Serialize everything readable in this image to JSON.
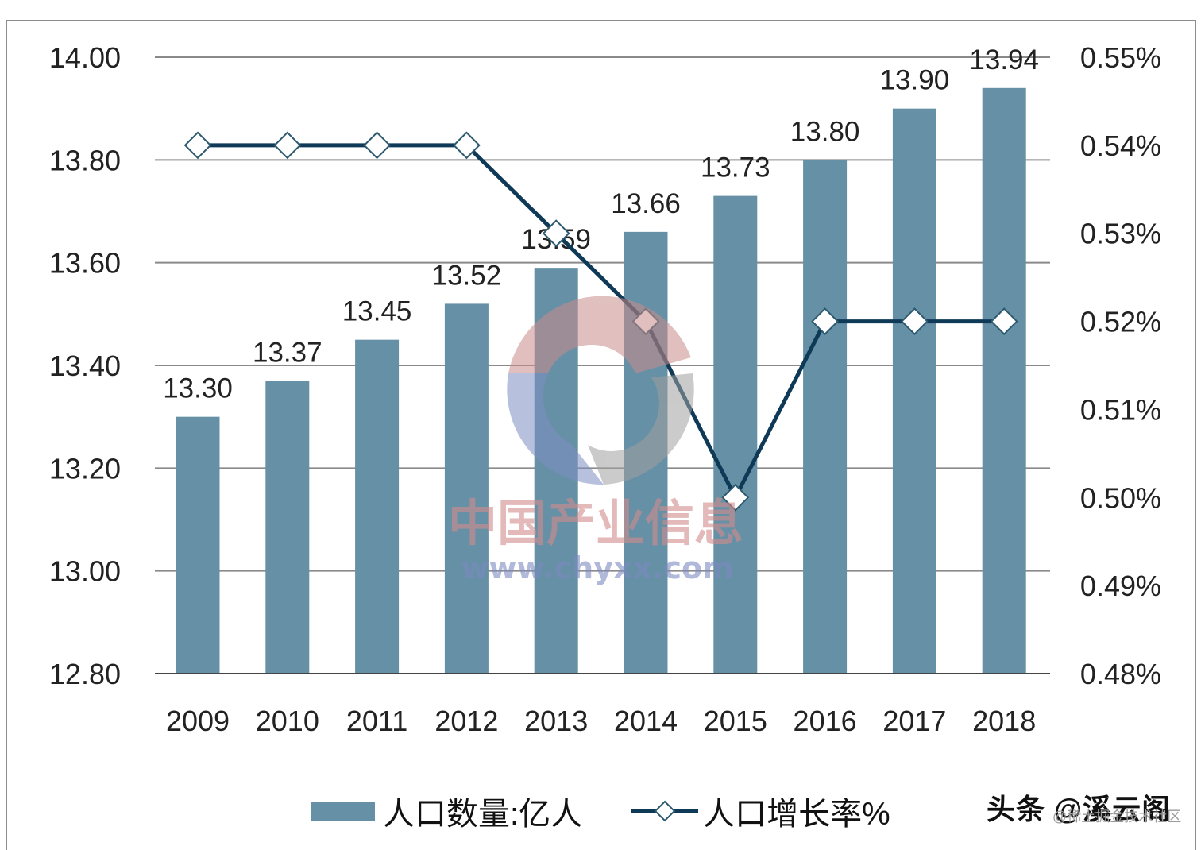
{
  "chart_data": {
    "type": "bar+line",
    "title": "",
    "categories": [
      "2009",
      "2010",
      "2011",
      "2012",
      "2013",
      "2014",
      "2015",
      "2016",
      "2017",
      "2018"
    ],
    "series": [
      {
        "name": "人口数量:亿人",
        "type": "bar",
        "axis": "left",
        "color": "#6690a6",
        "values": [
          13.3,
          13.37,
          13.45,
          13.52,
          13.59,
          13.66,
          13.73,
          13.8,
          13.9,
          13.94
        ],
        "labels": [
          "13.30",
          "13.37",
          "13.45",
          "13.52",
          "13.59",
          "13.66",
          "13.73",
          "13.80",
          "13.90",
          "13.94"
        ]
      },
      {
        "name": "人口增长率%",
        "type": "line",
        "axis": "right",
        "color": "#0f3a57",
        "marker": "diamond-open",
        "values": [
          0.54,
          0.54,
          0.54,
          0.54,
          0.53,
          0.52,
          0.5,
          0.52,
          0.52,
          0.52
        ]
      }
    ],
    "left_axis": {
      "ylim": [
        12.8,
        14.0
      ],
      "ticks": [
        "14.00",
        "13.80",
        "13.60",
        "13.40",
        "13.20",
        "13.00",
        "12.80"
      ]
    },
    "right_axis": {
      "ylim": [
        0.48,
        0.55
      ],
      "ticks": [
        "0.55%",
        "0.54%",
        "0.53%",
        "0.52%",
        "0.51%",
        "0.50%",
        "0.49%",
        "0.48%"
      ]
    },
    "xlabel": "",
    "ylabel": "",
    "grid": true,
    "legend_position": "bottom"
  },
  "legend": {
    "bar_label": "人口数量:亿人",
    "line_label": "人口增长率%"
  },
  "watermark": {
    "text_cn": "中国产业信息",
    "text_url": "www.chyxx.com"
  },
  "credit": {
    "main": "头条 @溪云阁",
    "sub": "@稀土掘金技术社区"
  }
}
